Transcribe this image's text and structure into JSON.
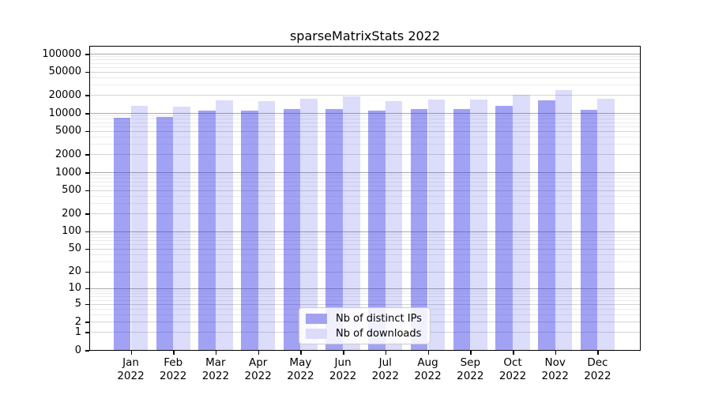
{
  "title": "sparseMatrixStats 2022",
  "legend": {
    "items": [
      {
        "label": "Nb of distinct IPs",
        "color": "#a2a2f1"
      },
      {
        "label": "Nb of downloads",
        "color": "#dcdcf9"
      }
    ]
  },
  "chart_data": {
    "type": "bar",
    "title": "sparseMatrixStats 2022",
    "categories": [
      "Jan 2022",
      "Feb 2022",
      "Mar 2022",
      "Apr 2022",
      "May 2022",
      "Jun 2022",
      "Jul 2022",
      "Aug 2022",
      "Sep 2022",
      "Oct 2022",
      "Nov 2022",
      "Dec 2022"
    ],
    "x_ticks": {
      "months": [
        "Jan",
        "Feb",
        "Mar",
        "Apr",
        "May",
        "Jun",
        "Jul",
        "Aug",
        "Sep",
        "Oct",
        "Nov",
        "Dec"
      ],
      "year": "2022"
    },
    "series": [
      {
        "name": "Nb of distinct IPs",
        "color": "#a2a2f1",
        "fill": "rgba(48,48,233,0.45)",
        "values": [
          8400,
          8500,
          11000,
          11000,
          11700,
          11600,
          10900,
          11500,
          11600,
          13200,
          16400,
          11400
        ]
      },
      {
        "name": "Nb of downloads",
        "color": "#dcdcf9",
        "fill": "rgba(48,48,233,0.17)",
        "values": [
          13200,
          13000,
          16200,
          15700,
          17400,
          19300,
          16000,
          16700,
          17100,
          20000,
          24400,
          17400
        ]
      }
    ],
    "xlabel": "",
    "ylabel": "",
    "yscale": "log1p",
    "ylim": [
      0,
      100000
    ],
    "y_tick_values": [
      0,
      1,
      2,
      5,
      10,
      20,
      50,
      100,
      200,
      500,
      1000,
      2000,
      5000,
      10000,
      20000,
      50000,
      100000
    ],
    "y_tick_labels": [
      "0",
      "1",
      "2",
      "5",
      "10",
      "20",
      "50",
      "100",
      "200",
      "500",
      "1000",
      "2000",
      "5000",
      "10000",
      "20000",
      "50000",
      "100000"
    ],
    "grid": true,
    "legend_position": "inside lower center",
    "colors": {
      "grid_major": "#a9a9a9",
      "grid_ticked": "#d4d4d4",
      "grid_minor": "#ebebeb",
      "axis": "#000000",
      "background": "#ffffff"
    },
    "values_note": "estimated from pixel heights"
  }
}
